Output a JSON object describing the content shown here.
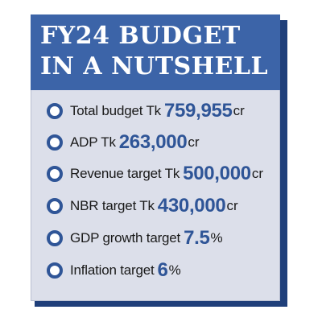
{
  "title": {
    "line1": "FY24 BUDGET",
    "line2": "IN A NUTSHELL"
  },
  "items": [
    {
      "label": "Total budget Tk",
      "value": "759,955",
      "unit": "cr"
    },
    {
      "label": "ADP Tk",
      "value": "263,000",
      "unit": "cr"
    },
    {
      "label": "Revenue target Tk",
      "value": "500,000",
      "unit": "cr"
    },
    {
      "label": "NBR target Tk",
      "value": "430,000",
      "unit": "cr"
    },
    {
      "label": "GDP growth target",
      "value": "7.5",
      "unit": "%"
    },
    {
      "label": "Inflation target",
      "value": "6",
      "unit": "%"
    }
  ],
  "colors": {
    "header": "#3c64a8",
    "card": "#dcdfea",
    "shadow": "#1f3f7a",
    "value": "#2f5597"
  }
}
